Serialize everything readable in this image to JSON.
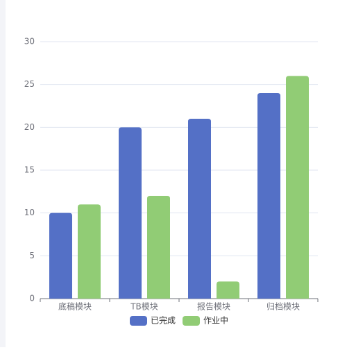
{
  "chart_data": {
    "type": "bar",
    "categories": [
      "底稿模块",
      "TB模块",
      "报告模块",
      "归档模块"
    ],
    "series": [
      {
        "name": "已完成",
        "color": "#5470c6",
        "values": [
          10,
          20,
          21,
          24
        ]
      },
      {
        "name": "作业中",
        "color": "#91cc75",
        "values": [
          11,
          12,
          2,
          26
        ]
      }
    ],
    "ylim": [
      0,
      30
    ],
    "yticks": [
      0,
      5,
      10,
      15,
      20,
      25,
      30
    ],
    "grid": true,
    "legend": "bottom"
  }
}
